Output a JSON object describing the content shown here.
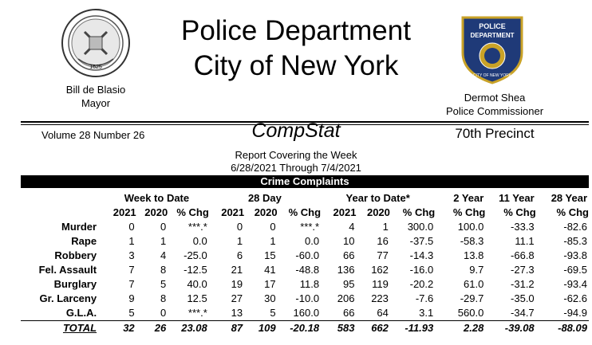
{
  "header": {
    "title_line1": "Police Department",
    "title_line2": "City of New York",
    "mayor_name": "Bill de Blasio",
    "mayor_title": "Mayor",
    "commissioner_name": "Dermot Shea",
    "commissioner_title": "Police Commissioner",
    "seal_year": "1625",
    "badge_text_top": "POLICE",
    "badge_text_mid": "DEPARTMENT",
    "badge_text_bottom": "CITY OF NEW YORK"
  },
  "report": {
    "volume": "Volume 28   Number  26",
    "name": "CompStat",
    "precinct": "70th Precinct",
    "covering": "Report Covering the Week",
    "dates": "6/28/2021  Through  7/4/2021",
    "section_title": "Crime Complaints"
  },
  "columns": {
    "groups": [
      "Week to Date",
      "28 Day",
      "Year to Date*",
      "2 Year",
      "11 Year",
      "28 Year"
    ],
    "sub": [
      "2021",
      "2020",
      "% Chg",
      "2021",
      "2020",
      "% Chg",
      "2021",
      "2020",
      "% Chg",
      "% Chg",
      "% Chg",
      "% Chg"
    ]
  },
  "rows": [
    {
      "label": "Murder",
      "cells": [
        "0",
        "0",
        "***.*",
        "0",
        "0",
        "***.*",
        "4",
        "1",
        "300.0",
        "100.0",
        "-33.3",
        "-82.6"
      ]
    },
    {
      "label": "Rape",
      "cells": [
        "1",
        "1",
        "0.0",
        "1",
        "1",
        "0.0",
        "10",
        "16",
        "-37.5",
        "-58.3",
        "11.1",
        "-85.3"
      ]
    },
    {
      "label": "Robbery",
      "cells": [
        "3",
        "4",
        "-25.0",
        "6",
        "15",
        "-60.0",
        "66",
        "77",
        "-14.3",
        "13.8",
        "-66.8",
        "-93.8"
      ]
    },
    {
      "label": "Fel. Assault",
      "cells": [
        "7",
        "8",
        "-12.5",
        "21",
        "41",
        "-48.8",
        "136",
        "162",
        "-16.0",
        "9.7",
        "-27.3",
        "-69.5"
      ]
    },
    {
      "label": "Burglary",
      "cells": [
        "7",
        "5",
        "40.0",
        "19",
        "17",
        "11.8",
        "95",
        "119",
        "-20.2",
        "61.0",
        "-31.2",
        "-93.4"
      ]
    },
    {
      "label": "Gr. Larceny",
      "cells": [
        "9",
        "8",
        "12.5",
        "27",
        "30",
        "-10.0",
        "206",
        "223",
        "-7.6",
        "-29.7",
        "-35.0",
        "-62.6"
      ]
    },
    {
      "label": "G.L.A.",
      "cells": [
        "5",
        "0",
        "***.*",
        "13",
        "5",
        "160.0",
        "66",
        "64",
        "3.1",
        "560.0",
        "-34.7",
        "-94.9"
      ]
    }
  ],
  "total": {
    "label": "TOTAL",
    "cells": [
      "32",
      "26",
      "23.08",
      "87",
      "109",
      "-20.18",
      "583",
      "662",
      "-11.93",
      "2.28",
      "-39.08",
      "-88.09"
    ]
  }
}
